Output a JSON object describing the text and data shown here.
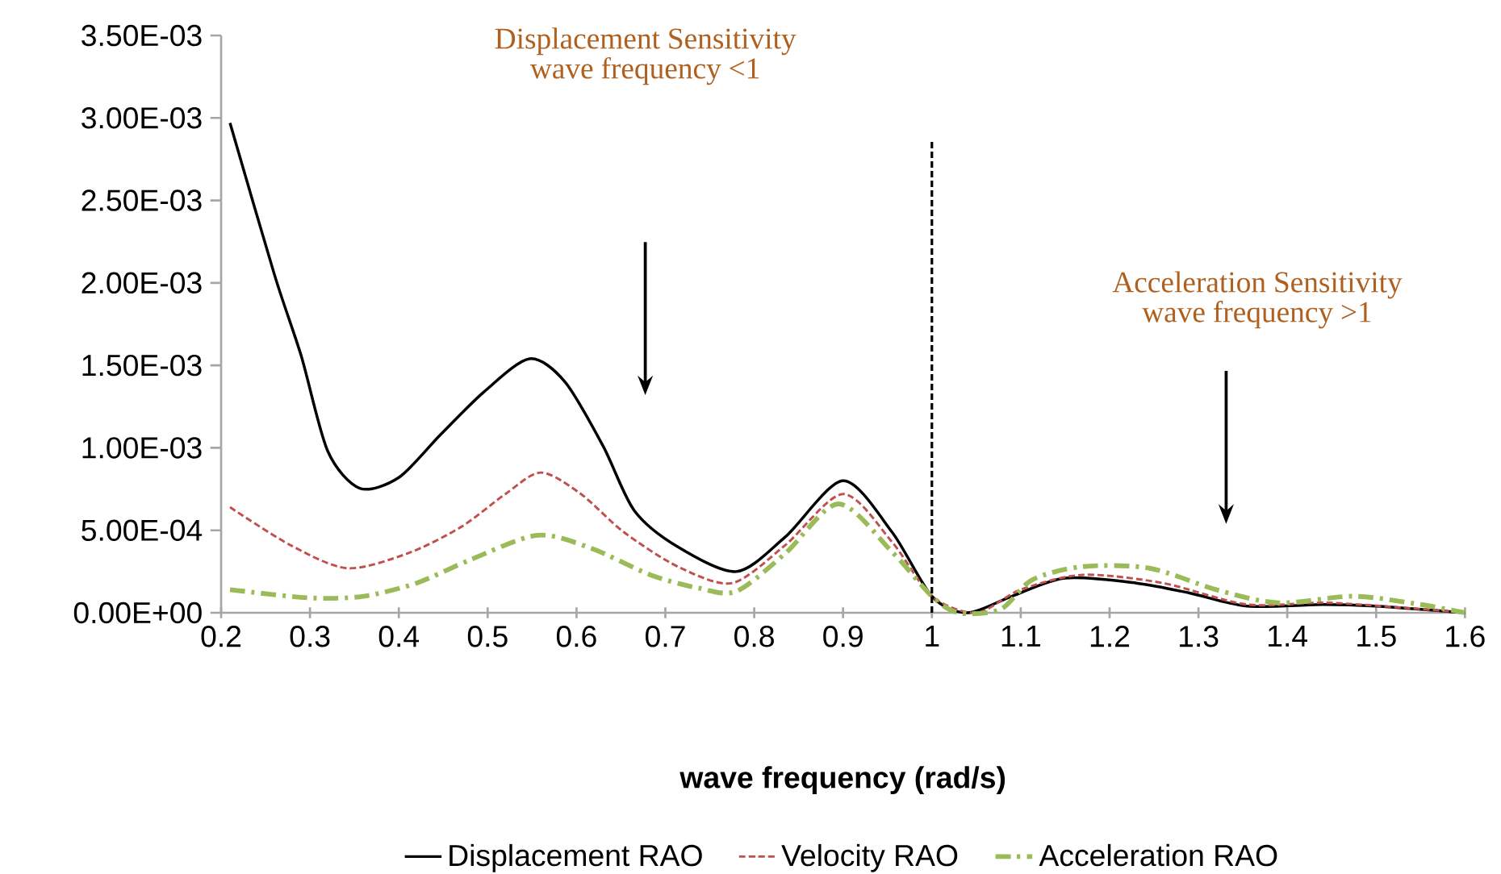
{
  "chart_data": {
    "type": "line",
    "xlabel": "wave frequency (rad/s)",
    "xlim": [
      0.2,
      1.6
    ],
    "xticks": [
      0.2,
      0.3,
      0.4,
      0.5,
      0.6,
      0.7,
      0.8,
      0.9,
      1,
      1.1,
      1.2,
      1.3,
      1.4,
      1.5,
      1.6
    ],
    "ylim": [
      0,
      0.0035
    ],
    "yticks": [
      {
        "value": 0,
        "label": "0.00E+00"
      },
      {
        "value": 0.0005,
        "label": "5.00E-04"
      },
      {
        "value": 0.001,
        "label": "1.00E-03"
      },
      {
        "value": 0.0015,
        "label": "1.50E-03"
      },
      {
        "value": 0.002,
        "label": "2.00E-03"
      },
      {
        "value": 0.0025,
        "label": "2.50E-03"
      },
      {
        "value": 0.003,
        "label": "3.00E-03"
      },
      {
        "value": 0.0035,
        "label": "3.50E-03"
      }
    ],
    "grid": false,
    "legend": "bottom",
    "marker": "none",
    "series": [
      {
        "name": "Displacement RAO",
        "color": "#000000",
        "line_style": "solid",
        "x": [
          0.21,
          0.26,
          0.29,
          0.32,
          0.356,
          0.4,
          0.447,
          0.496,
          0.547,
          0.587,
          0.63,
          0.665,
          0.714,
          0.78,
          0.835,
          0.9,
          0.955,
          1.0,
          1.04,
          1.09,
          1.15,
          1.23,
          1.29,
          1.355,
          1.44,
          1.5,
          1.6
        ],
        "values": [
          0.00297,
          0.00205,
          0.00156,
          0.00098,
          0.000755,
          0.00082,
          0.00108,
          0.00134,
          0.00154,
          0.0014,
          0.00101,
          0.00062,
          0.0004,
          0.00025,
          0.00046,
          0.0008,
          0.00049,
          0.0001,
          0.0,
          0.0001,
          0.00021,
          0.00018,
          0.00012,
          4e-05,
          5e-05,
          4e-05,
          0.0
        ]
      },
      {
        "name": "Velocity RAO",
        "color": "#c0504d",
        "line_style": "dashed",
        "x": [
          0.21,
          0.278,
          0.342,
          0.41,
          0.47,
          0.52,
          0.56,
          0.605,
          0.653,
          0.714,
          0.775,
          0.835,
          0.9,
          0.955,
          1.0,
          1.05,
          1.1,
          1.17,
          1.26,
          1.355,
          1.45,
          1.6
        ],
        "values": [
          0.00064,
          0.00041,
          0.00027,
          0.00036,
          0.00052,
          0.00072,
          0.00085,
          0.00072,
          0.00049,
          0.00028,
          0.00018,
          0.00041,
          0.00072,
          0.00043,
          0.0001,
          0.0,
          0.00014,
          0.00023,
          0.00018,
          5e-05,
          6e-05,
          0.0
        ]
      },
      {
        "name": "Acceleration RAO",
        "color": "#9bbb59",
        "line_style": "dashdot",
        "x": [
          0.21,
          0.3,
          0.36,
          0.42,
          0.48,
          0.556,
          0.617,
          0.683,
          0.737,
          0.78,
          0.835,
          0.895,
          0.955,
          1.0,
          1.03,
          1.077,
          1.113,
          1.17,
          1.245,
          1.32,
          1.39,
          1.475,
          1.55,
          1.6
        ],
        "values": [
          0.00014,
          9e-05,
          0.0001,
          0.00018,
          0.00032,
          0.00047,
          0.00039,
          0.00023,
          0.00015,
          0.00013,
          0.00036,
          0.00066,
          0.00037,
          0.0001,
          0.0,
          2e-05,
          0.0002,
          0.00028,
          0.00027,
          0.00014,
          6e-05,
          0.0001,
          5e-05,
          0.0
        ]
      }
    ],
    "ref_lines": [
      {
        "axis": "x",
        "value": 1,
        "color": "#000000",
        "line_style": "dashed"
      }
    ],
    "annotations": [
      "Displacement Sensitivity wave frequency <1",
      "Acceleration Sensitivity wave frequency >1"
    ]
  }
}
